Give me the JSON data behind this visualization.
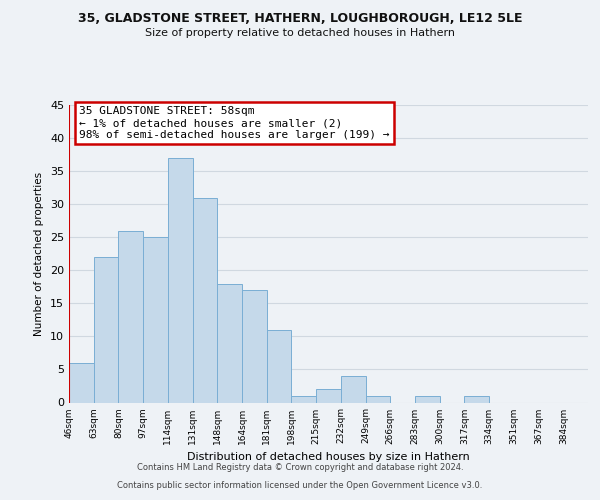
{
  "title_line1": "35, GLADSTONE STREET, HATHERN, LOUGHBOROUGH, LE12 5LE",
  "title_line2": "Size of property relative to detached houses in Hathern",
  "xlabel": "Distribution of detached houses by size in Hathern",
  "ylabel": "Number of detached properties",
  "bin_labels": [
    "46sqm",
    "63sqm",
    "80sqm",
    "97sqm",
    "114sqm",
    "131sqm",
    "148sqm",
    "164sqm",
    "181sqm",
    "198sqm",
    "215sqm",
    "232sqm",
    "249sqm",
    "266sqm",
    "283sqm",
    "300sqm",
    "317sqm",
    "334sqm",
    "351sqm",
    "367sqm",
    "384sqm"
  ],
  "bar_heights": [
    6,
    22,
    26,
    25,
    37,
    31,
    18,
    17,
    11,
    1,
    2,
    4,
    1,
    0,
    1,
    0,
    1,
    0,
    0,
    0,
    0
  ],
  "bar_color": "#c5d9ea",
  "bar_edge_color": "#7aaed4",
  "highlight_line_color": "#cc0000",
  "annotation_box_text": "35 GLADSTONE STREET: 58sqm\n← 1% of detached houses are smaller (2)\n98% of semi-detached houses are larger (199) →",
  "annotation_box_edge_color": "#cc0000",
  "annotation_box_bg_color": "#ffffff",
  "ylim": [
    0,
    45
  ],
  "yticks": [
    0,
    5,
    10,
    15,
    20,
    25,
    30,
    35,
    40,
    45
  ],
  "footer_line1": "Contains HM Land Registry data © Crown copyright and database right 2024.",
  "footer_line2": "Contains public sector information licensed under the Open Government Licence v3.0.",
  "grid_color": "#d0d8e0",
  "background_color": "#eef2f6"
}
